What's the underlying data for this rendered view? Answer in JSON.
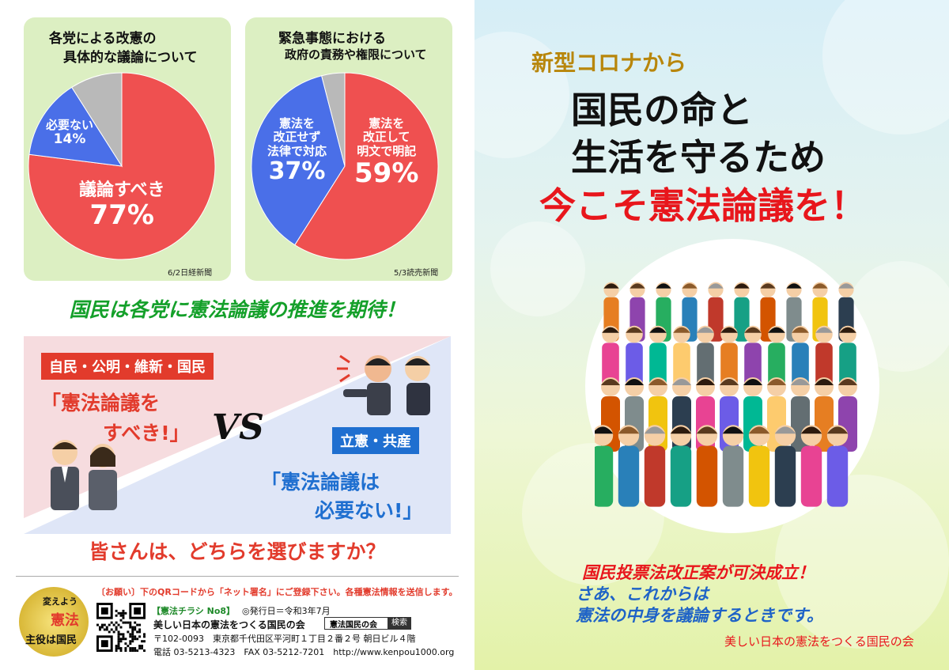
{
  "poll1": {
    "title_line1": "各党による改憲の",
    "title_line2": "具体的な議論について",
    "source": "6/2日経新聞",
    "slices": [
      {
        "label": "議論すべき",
        "value_text": "77%",
        "value": 77,
        "color": "#ef5050"
      },
      {
        "label": "必要ない",
        "value_text": "14%",
        "value": 14,
        "color": "#4a6fe8"
      },
      {
        "label": "",
        "value_text": "",
        "value": 9,
        "color": "#b9b9b9"
      }
    ]
  },
  "poll2": {
    "title_line1": "緊急事態における",
    "title_line2": "政府の責務や権限について",
    "source": "5/3読売新聞",
    "slices": [
      {
        "label_line1": "憲法を",
        "label_line2": "改正して",
        "label_line3": "明文で明記",
        "value_text": "59%",
        "value": 59,
        "color": "#ef5050"
      },
      {
        "label_line1": "憲法を",
        "label_line2": "改正せず",
        "label_line3": "法律で対応",
        "value_text": "37%",
        "value": 37,
        "color": "#4a6fe8"
      },
      {
        "label_line1": "",
        "label_line2": "",
        "label_line3": "",
        "value_text": "",
        "value": 4,
        "color": "#b9b9b9"
      }
    ]
  },
  "headline": "国民は各党に憲法論議の推進を期待！",
  "vs": {
    "left_tag": "自民・公明・維新・国民",
    "left_quote_line1": "「憲法論議を",
    "left_quote_line2": "すべき!」",
    "vs_text": "VS",
    "right_tag": "立憲・共産",
    "right_quote_line1": "「憲法論議は",
    "right_quote_line2": "必要ない!」"
  },
  "question": "皆さんは、どちらを選びますか？",
  "footer": {
    "note": "〔お願い〕下のQRコードから「ネット署名」にご登録下さい。各種憲法情報を送信します。",
    "logo_line1": "変えよう",
    "logo_line2": "憲法",
    "logo_line3": "主役は国民",
    "flyer_no": "【憲法チラシ No8】",
    "issue_date": "◎発行日＝令和3年7月",
    "org": "美しい日本の憲法をつくる国民の会",
    "search_box": "憲法国民の会",
    "search_label": "検索",
    "address": "〒102-0093　東京都千代田区平河町１丁目２番２号 朝日ビル４階",
    "contact": "電話 03-5213-4323　FAX 03-5212-7201　http://www.kenpou1000.org"
  },
  "right": {
    "lead": "新型コロナから",
    "title_line1": "国民の命と",
    "title_line2": "生活を守るため",
    "title_line3": "今こそ憲法論議を！",
    "msg_line1": "国民投票法改正案が可決成立！",
    "msg_line2": "さあ、これからは",
    "msg_line3": "憲法の中身を議論するときです。",
    "org": "美しい日本の憲法をつくる国民の会"
  }
}
